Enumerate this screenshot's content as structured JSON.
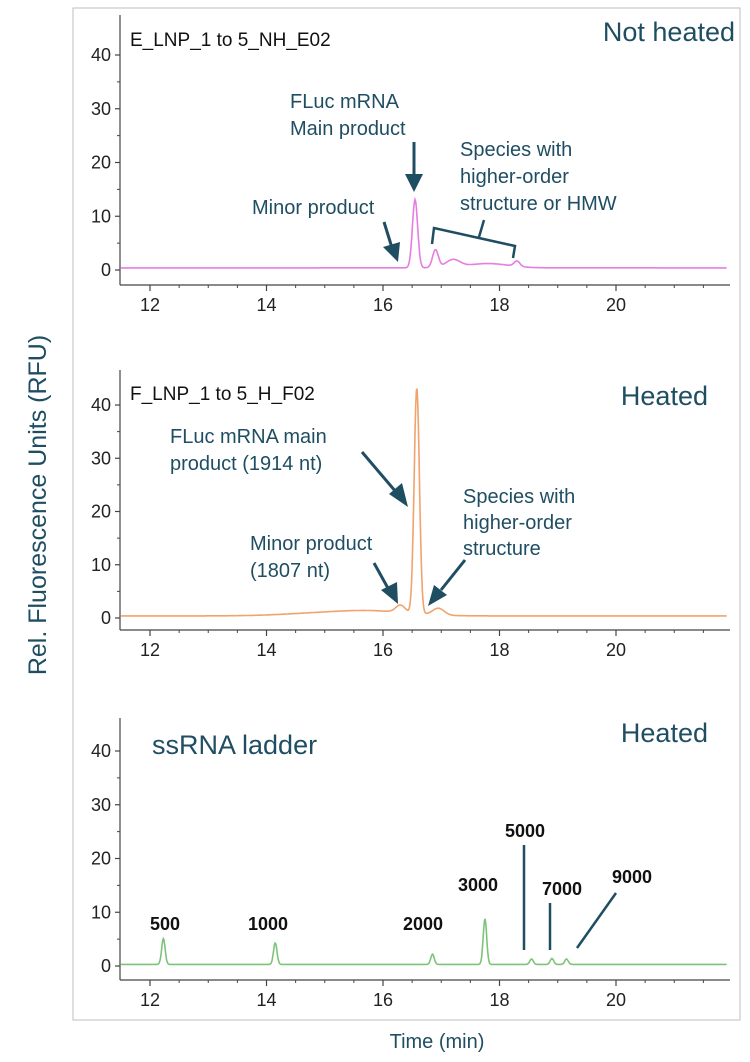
{
  "chart_data": {
    "type": "line",
    "ylabel": "Rel. Fluorescence Units (RFU)",
    "xlabel": "Time (min)",
    "xlim": [
      11.5,
      21.9
    ],
    "ylim": [
      -1,
      46
    ],
    "x_ticks": [
      12,
      14,
      16,
      18,
      20
    ],
    "y_ticks": [
      0,
      10,
      20,
      30,
      40
    ],
    "panels": [
      {
        "sample_label": "E_LNP_1 to 5_NH_E02",
        "condition": "Not heated",
        "color": "#e57ee0",
        "baseline": 0.4,
        "peaks": [
          {
            "x": 16.55,
            "y": 12.7,
            "w": 0.045
          },
          {
            "x": 16.9,
            "y": 3.3,
            "w": 0.05
          },
          {
            "x": 17.2,
            "y": 1.4,
            "w": 0.12
          },
          {
            "x": 17.8,
            "y": 0.8,
            "w": 0.35
          },
          {
            "x": 18.3,
            "y": 1.0,
            "w": 0.05
          }
        ],
        "annotations": [
          {
            "lines": [
              "FLuc mRNA",
              "Main product"
            ]
          },
          {
            "lines": [
              "Minor product"
            ]
          },
          {
            "lines": [
              "Species with",
              "higher-order",
              "structure or HMW"
            ]
          }
        ]
      },
      {
        "sample_label": "F_LNP_1 to 5_H_F02",
        "condition": "Heated",
        "color": "#f0a36c",
        "baseline": 0.4,
        "peaks": [
          {
            "x": 16.58,
            "y": 42.5,
            "w": 0.045
          },
          {
            "x": 16.3,
            "y": 1.4,
            "w": 0.08
          },
          {
            "x": 16.95,
            "y": 1.3,
            "w": 0.1
          },
          {
            "x": 15.8,
            "y": 0.9,
            "w": 0.6
          },
          {
            "x": 14.8,
            "y": 0.4,
            "w": 0.6
          }
        ],
        "annotations": [
          {
            "lines": [
              "FLuc mRNA main",
              "product (1914 nt)"
            ]
          },
          {
            "lines": [
              "Minor product",
              "(1807 nt)"
            ]
          },
          {
            "lines": [
              "Species with",
              "higher-order",
              "structure"
            ]
          }
        ]
      },
      {
        "sample_label": "ssRNA ladder",
        "condition": "Heated",
        "color": "#7dc47a",
        "baseline": 0.3,
        "peaks": [
          {
            "x": 12.23,
            "y": 4.8,
            "w": 0.03
          },
          {
            "x": 14.15,
            "y": 4.0,
            "w": 0.03
          },
          {
            "x": 16.85,
            "y": 1.9,
            "w": 0.03
          },
          {
            "x": 17.75,
            "y": 8.5,
            "w": 0.03
          },
          {
            "x": 18.55,
            "y": 1.0,
            "w": 0.03
          },
          {
            "x": 18.9,
            "y": 1.1,
            "w": 0.03
          },
          {
            "x": 19.15,
            "y": 1.0,
            "w": 0.03
          }
        ],
        "ladder_labels": [
          "500",
          "1000",
          "2000",
          "3000",
          "5000",
          "7000",
          "9000"
        ]
      }
    ]
  }
}
